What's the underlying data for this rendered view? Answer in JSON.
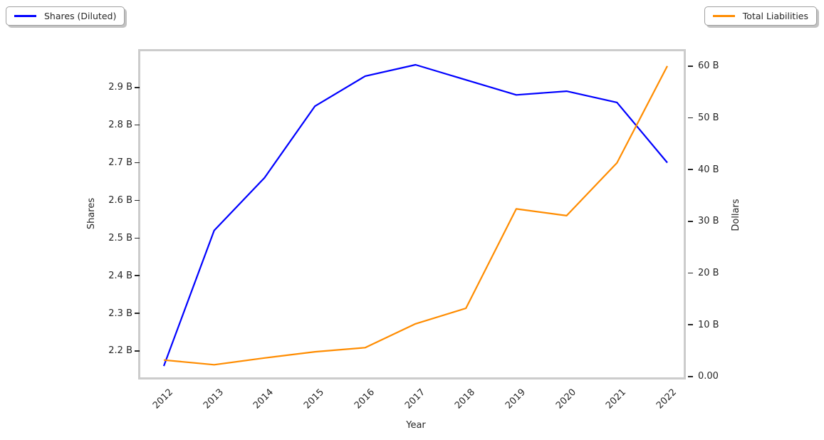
{
  "figure": {
    "background": "#ffffff"
  },
  "legends": {
    "left": {
      "label": "Shares (Diluted)",
      "color": "#0000ff"
    },
    "right": {
      "label": "Total Liabilities",
      "color": "#ff8c00"
    }
  },
  "axes": {
    "xlabel": "Year",
    "ylabel_left": "Shares",
    "ylabel_right": "Dollars"
  },
  "colors": {
    "spine": "#cccccc",
    "text": "#262626",
    "shares_line": "#0000ff",
    "liabilities_line": "#ff8c00"
  },
  "chart_data": {
    "type": "line",
    "title": "",
    "xlabel": "Year",
    "ylabel_left": "Shares",
    "ylabel_right": "Dollars",
    "grid": false,
    "x": [
      2012,
      2013,
      2014,
      2015,
      2016,
      2017,
      2018,
      2019,
      2020,
      2021,
      2022
    ],
    "xtick_labels": [
      "2012",
      "2013",
      "2014",
      "2015",
      "2016",
      "2017",
      "2018",
      "2019",
      "2020",
      "2021",
      "2022"
    ],
    "series": [
      {
        "name": "Shares (Diluted)",
        "axis": "left",
        "color": "#0000ff",
        "units": "billions of shares",
        "values": [
          2.16,
          2.52,
          2.66,
          2.85,
          2.93,
          2.96,
          2.92,
          2.88,
          2.89,
          2.86,
          2.7
        ]
      },
      {
        "name": "Total Liabilities",
        "axis": "right",
        "color": "#ff8c00",
        "units": "billions of dollars",
        "values": [
          3.2,
          2.3,
          3.6,
          4.8,
          5.6,
          10.2,
          13.2,
          32.4,
          31.1,
          41.3,
          60.0
        ]
      }
    ],
    "yticks_left": {
      "values": [
        2.2,
        2.3,
        2.4,
        2.5,
        2.6,
        2.7,
        2.8,
        2.9
      ],
      "labels": [
        "2.2 B",
        "2.3 B",
        "2.4 B",
        "2.5 B",
        "2.6 B",
        "2.7 B",
        "2.8 B",
        "2.9 B"
      ]
    },
    "yticks_right": {
      "values": [
        0,
        10,
        20,
        30,
        40,
        50,
        60
      ],
      "labels": [
        "0.00",
        "10 B",
        "20 B",
        "30 B",
        "40 B",
        "50 B",
        "60 B"
      ]
    },
    "xlim": [
      2011.533,
      2022.325
    ],
    "ylim_left": [
      2.13,
      2.996
    ],
    "ylim_right": [
      -0.14,
      62.86
    ],
    "legend_position": "outside top-left and outside top-right"
  }
}
